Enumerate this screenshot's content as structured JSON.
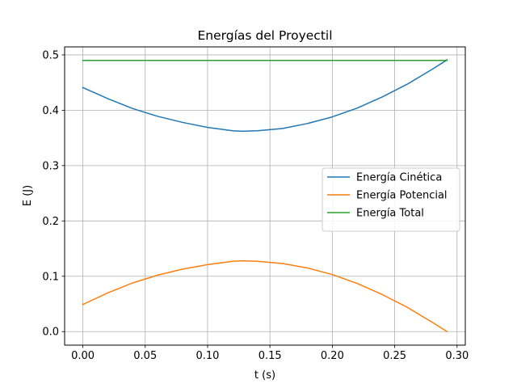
{
  "chart_data": {
    "type": "line",
    "title": "Energías del Proyectil",
    "xlabel": "t (s)",
    "ylabel": "E (J)",
    "xlim": [
      -0.0146,
      0.3066
    ],
    "ylim": [
      -0.0245,
      0.5145
    ],
    "xticks": [
      0.0,
      0.05,
      0.1,
      0.15,
      0.2,
      0.25,
      0.3
    ],
    "xtick_labels": [
      "0.00",
      "0.05",
      "0.10",
      "0.15",
      "0.20",
      "0.25",
      "0.30"
    ],
    "yticks": [
      0.0,
      0.1,
      0.2,
      0.3,
      0.4,
      0.5
    ],
    "ytick_labels": [
      "0.0",
      "0.1",
      "0.2",
      "0.3",
      "0.4",
      "0.5"
    ],
    "grid": true,
    "legend_position": "center-right",
    "series": [
      {
        "name": "Energía Cinética",
        "color": "#1f77b4",
        "x": [
          0.0,
          0.02,
          0.04,
          0.06,
          0.08,
          0.1,
          0.12,
          0.128,
          0.14,
          0.16,
          0.18,
          0.2,
          0.22,
          0.24,
          0.26,
          0.28,
          0.292
        ],
        "y": [
          0.441,
          0.421,
          0.403,
          0.389,
          0.378,
          0.369,
          0.363,
          0.362,
          0.363,
          0.367,
          0.376,
          0.388,
          0.404,
          0.424,
          0.447,
          0.474,
          0.491
        ]
      },
      {
        "name": "Energía Potencial",
        "color": "#ff7f0e",
        "x": [
          0.0,
          0.02,
          0.04,
          0.06,
          0.08,
          0.1,
          0.12,
          0.128,
          0.14,
          0.16,
          0.18,
          0.2,
          0.22,
          0.24,
          0.26,
          0.28,
          0.292
        ],
        "y": [
          0.049,
          0.07,
          0.088,
          0.102,
          0.113,
          0.121,
          0.127,
          0.128,
          0.127,
          0.123,
          0.115,
          0.103,
          0.087,
          0.067,
          0.044,
          0.017,
          0.0
        ]
      },
      {
        "name": "Energía Total",
        "color": "#2ca02c",
        "x": [
          0.0,
          0.292
        ],
        "y": [
          0.49,
          0.49
        ]
      }
    ]
  }
}
